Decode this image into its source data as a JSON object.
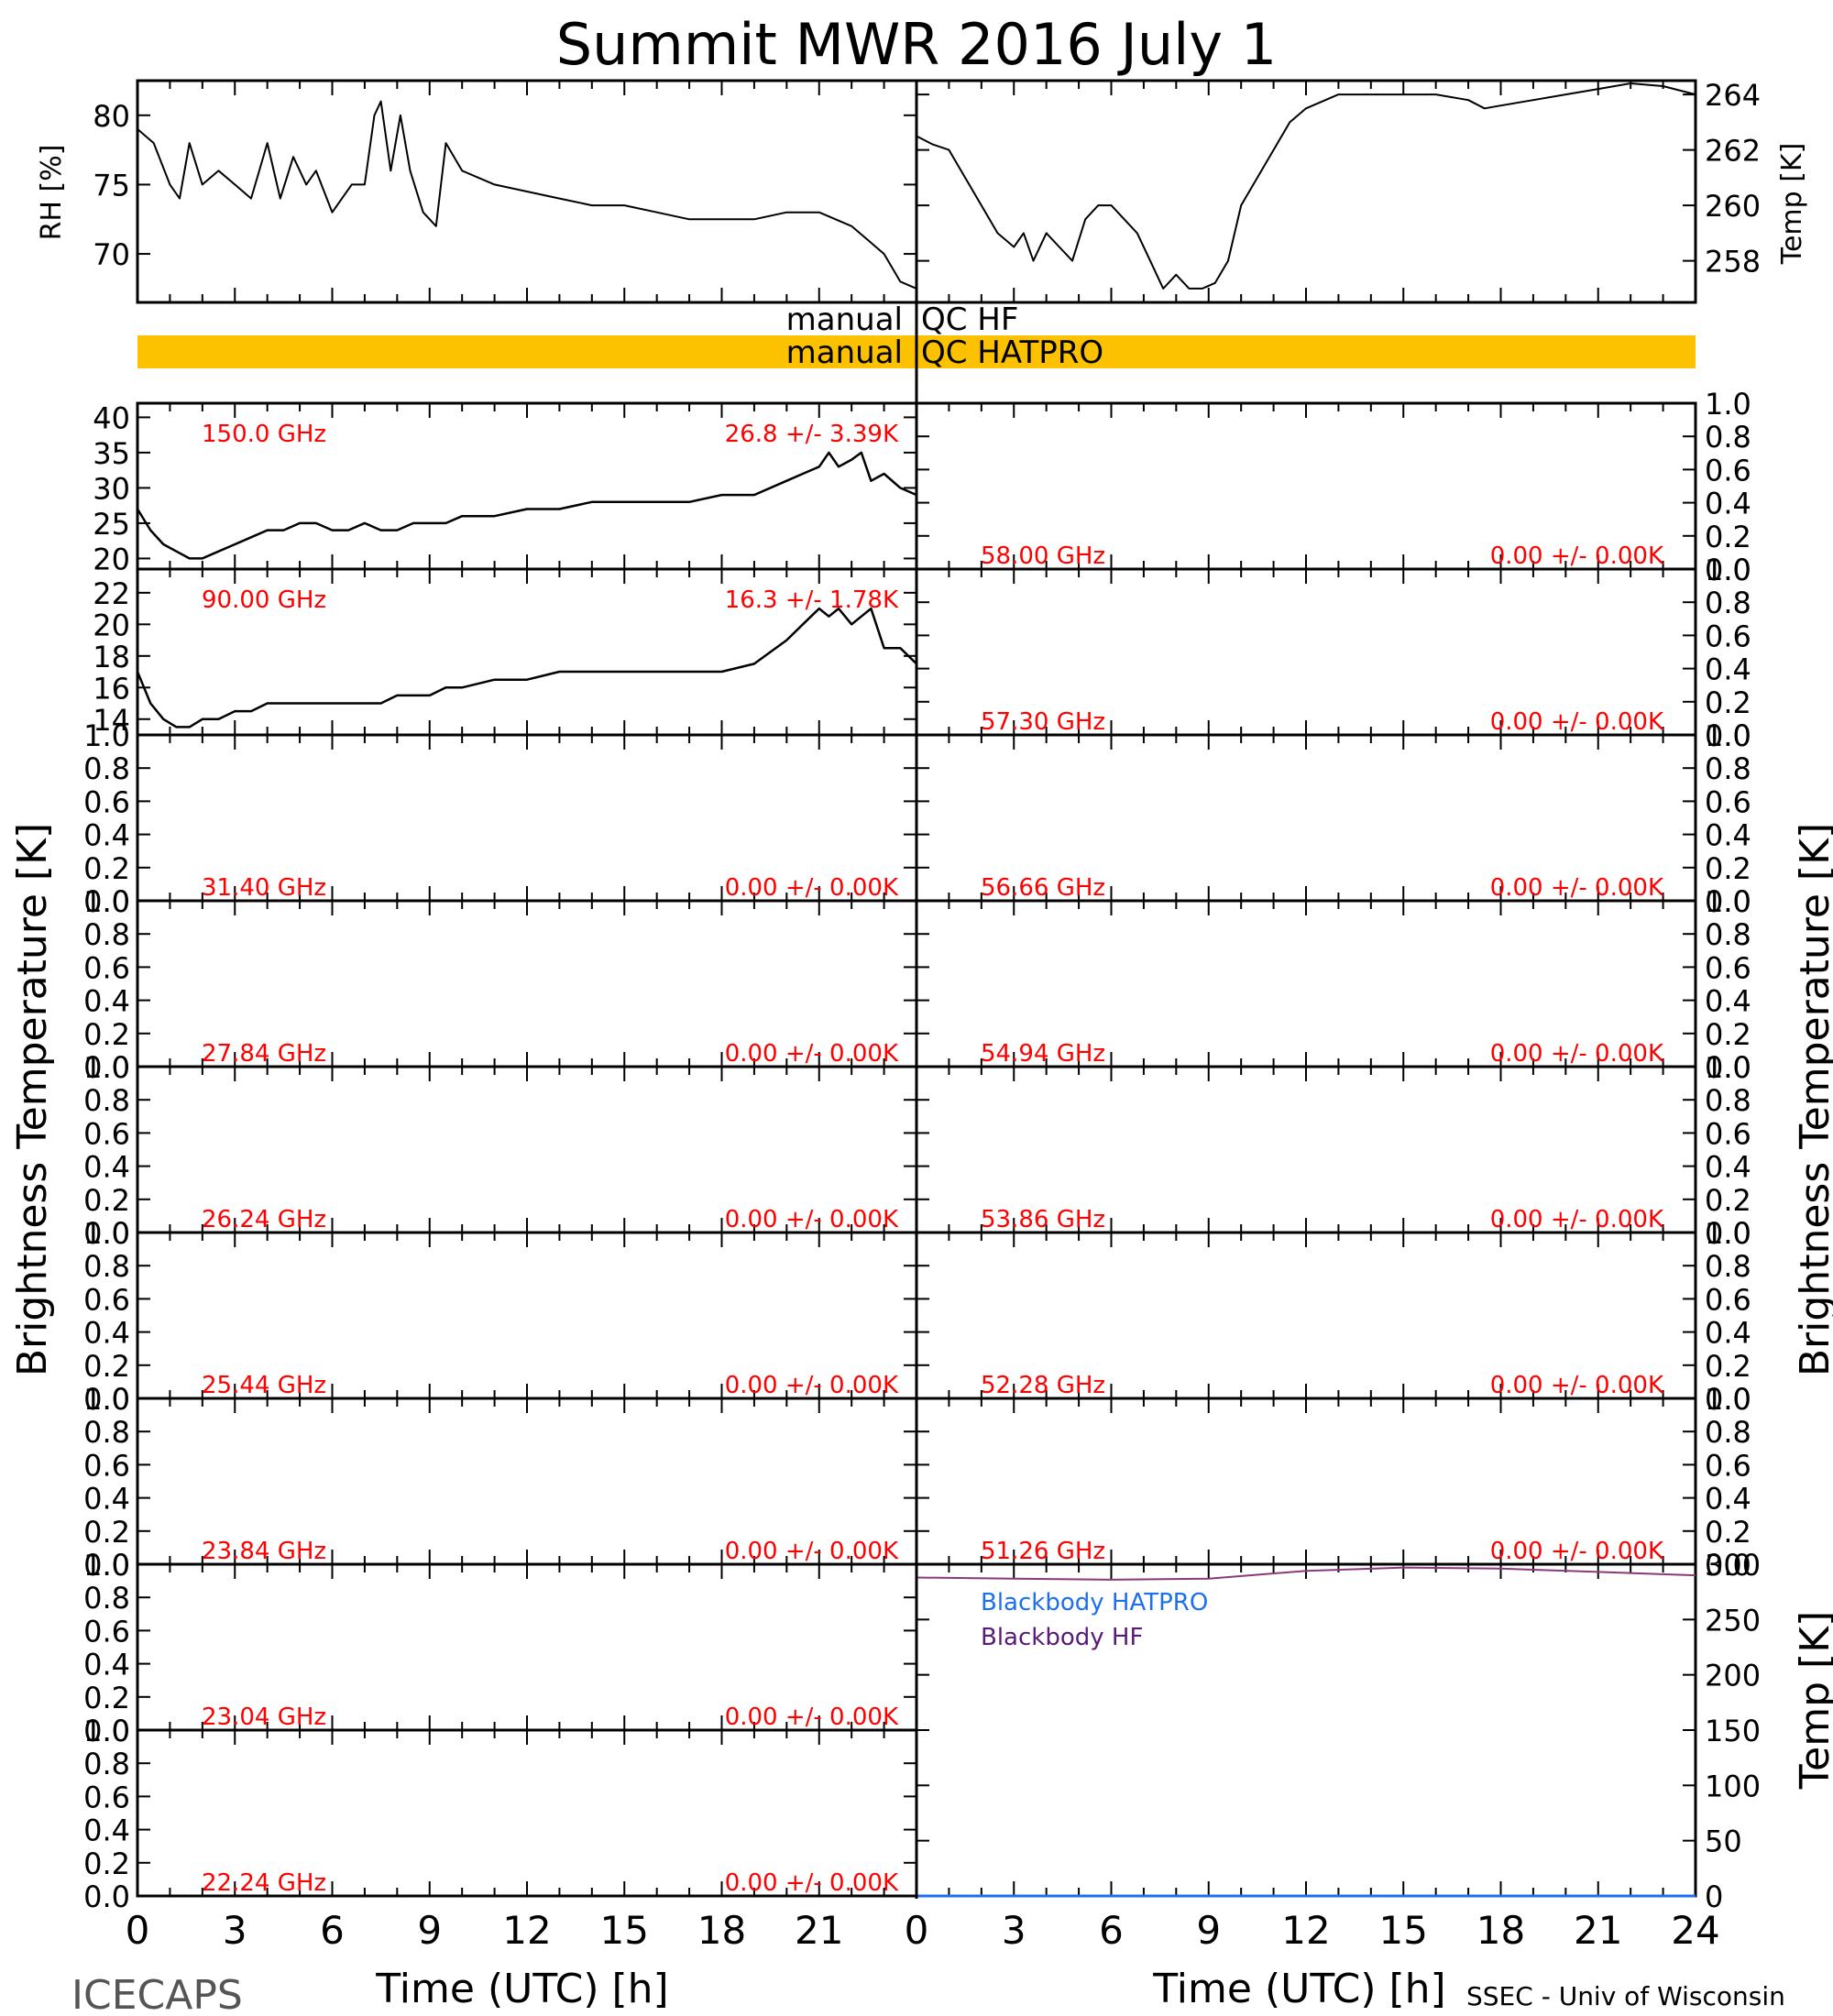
{
  "title": "Summit MWR 2016 July  1",
  "footer_left": "ICECAPS",
  "footer_right": "SSEC - Univ of Wisconsin",
  "colors": {
    "axis": "#000000",
    "trace": "#000000",
    "channel_label": "#ff0000",
    "qc_band": "#fcc200",
    "bb_hatpro": "#1e6ff0",
    "bb_hf": "#5a1a78",
    "bb_hf_line": "#8a3a7a"
  },
  "x_axis": {
    "label": "Time (UTC) [h]",
    "ticks_left": [
      "0",
      "3",
      "6",
      "9",
      "12",
      "15",
      "18",
      "21"
    ],
    "ticks_right": [
      "0",
      "3",
      "6",
      "9",
      "12",
      "15",
      "18",
      "21",
      "24"
    ],
    "range": [
      0,
      24
    ]
  },
  "y_axis_labels": {
    "rh": "RH [%]",
    "temp": "Temp [K]",
    "tb_left": "Brightness Temperature [K]",
    "tb_right": "Brightness Temperature [K]",
    "bb_temp": "Temp [K]"
  },
  "qc": {
    "hf_label_left": "manual",
    "hf_label_right": "QC HF",
    "hatpro_label_left": "manual",
    "hatpro_label_right": "QC HATPRO"
  },
  "chart_data": {
    "type": "line",
    "met": {
      "rh": {
        "ylim": [
          66.5,
          82.5
        ],
        "yticks": [
          "80",
          "75",
          "70"
        ],
        "x": [
          0,
          0.5,
          1,
          1.3,
          1.6,
          2,
          2.5,
          3,
          3.5,
          4,
          4.4,
          4.8,
          5.2,
          5.5,
          6,
          6.3,
          6.6,
          7,
          7.3,
          7.5,
          7.8,
          8.1,
          8.4,
          8.8,
          9.2,
          9.5,
          10,
          11,
          12,
          13,
          14,
          15,
          16,
          17,
          18,
          19,
          20,
          21,
          22,
          22.5,
          23,
          23.5,
          24
        ],
        "values": [
          79,
          78,
          75,
          74,
          78,
          75,
          76,
          75,
          74,
          78,
          74,
          77,
          75,
          76,
          73,
          74,
          75,
          75,
          80,
          81,
          76,
          80,
          76,
          73,
          72,
          78,
          76,
          75,
          74.5,
          74,
          73.5,
          73.5,
          73,
          72.5,
          72.5,
          72.5,
          73,
          73,
          72,
          71,
          70,
          68,
          67.5
        ]
      },
      "temp": {
        "ylim": [
          256.5,
          264.5
        ],
        "yticks": [
          "264",
          "262",
          "260",
          "258"
        ],
        "x": [
          0,
          0.5,
          1,
          1.5,
          2,
          2.5,
          3,
          3.3,
          3.6,
          4,
          4.4,
          4.8,
          5.2,
          5.6,
          6,
          6.4,
          6.8,
          7.2,
          7.6,
          8,
          8.4,
          8.8,
          9.2,
          9.6,
          10,
          10.5,
          11,
          11.5,
          12,
          13,
          14,
          15,
          16,
          17,
          17.5,
          18,
          19,
          20,
          21,
          22,
          23,
          24
        ],
        "values": [
          262.5,
          262.2,
          262,
          261,
          260,
          259,
          258.5,
          259,
          258,
          259,
          258.5,
          258,
          259.5,
          260,
          260,
          259.5,
          259,
          258,
          257,
          257.5,
          257,
          257,
          257.2,
          258,
          260,
          261,
          262,
          263,
          263.5,
          264,
          264,
          264,
          264,
          263.8,
          263.5,
          263.6,
          263.8,
          264,
          264.2,
          264.4,
          264.3,
          264
        ]
      }
    },
    "tb_left": [
      {
        "freq": "150.0 GHz",
        "stats": "26.8 +/-  3.39K",
        "ylim": [
          18.5,
          42
        ],
        "yticks": [
          "40",
          "35",
          "30",
          "25",
          "20"
        ],
        "x": [
          0,
          0.4,
          0.8,
          1.2,
          1.6,
          2,
          2.5,
          3,
          3.5,
          4,
          4.5,
          5,
          5.5,
          6,
          6.5,
          7,
          7.5,
          8,
          8.5,
          9,
          9.5,
          10,
          11,
          12,
          13,
          14,
          15,
          16,
          17,
          18,
          19,
          20,
          20.5,
          21,
          21.3,
          21.6,
          22,
          22.3,
          22.6,
          23,
          23.5,
          24
        ],
        "values": [
          27,
          24,
          22,
          21,
          20,
          20,
          21,
          22,
          23,
          24,
          24,
          25,
          25,
          24,
          24,
          25,
          24,
          24,
          25,
          25,
          25,
          26,
          26,
          27,
          27,
          28,
          28,
          28,
          28,
          29,
          29,
          31,
          32,
          33,
          35,
          33,
          34,
          35,
          31,
          32,
          30,
          29
        ]
      },
      {
        "freq": "90.00 GHz",
        "stats": "16.3 +/-  1.78K",
        "ylim": [
          13,
          23.5
        ],
        "yticks": [
          "22",
          "20",
          "18",
          "16",
          "14"
        ],
        "x": [
          0,
          0.4,
          0.8,
          1.2,
          1.6,
          2,
          2.5,
          3,
          3.5,
          4,
          4.5,
          5,
          5.5,
          6,
          6.5,
          7,
          7.5,
          8,
          8.5,
          9,
          9.5,
          10,
          11,
          12,
          13,
          14,
          15,
          16,
          17,
          18,
          19,
          20,
          20.5,
          21,
          21.3,
          21.6,
          22,
          22.3,
          22.6,
          23,
          23.5,
          24
        ],
        "values": [
          17,
          15,
          14,
          13.5,
          13.5,
          14,
          14,
          14.5,
          14.5,
          15,
          15,
          15,
          15,
          15,
          15,
          15,
          15,
          15.5,
          15.5,
          15.5,
          16,
          16,
          16.5,
          16.5,
          17,
          17,
          17,
          17,
          17,
          17,
          17.5,
          19,
          20,
          21,
          20.5,
          21,
          20,
          20.5,
          21,
          18.5,
          18.5,
          17.5
        ]
      },
      {
        "freq": "31.40 GHz",
        "stats": "0.00 +/-  0.00K",
        "ylim": [
          0,
          1
        ],
        "yticks": [
          "1.0",
          "0.8",
          "0.6",
          "0.4",
          "0.2",
          "0.0"
        ],
        "x": [],
        "values": []
      },
      {
        "freq": "27.84 GHz",
        "stats": "0.00 +/-  0.00K",
        "ylim": [
          0,
          1
        ],
        "yticks": [
          "1.0",
          "0.8",
          "0.6",
          "0.4",
          "0.2",
          "0.0"
        ],
        "x": [],
        "values": []
      },
      {
        "freq": "26.24 GHz",
        "stats": "0.00 +/-  0.00K",
        "ylim": [
          0,
          1
        ],
        "yticks": [
          "1.0",
          "0.8",
          "0.6",
          "0.4",
          "0.2",
          "0.0"
        ],
        "x": [],
        "values": []
      },
      {
        "freq": "25.44 GHz",
        "stats": "0.00 +/-  0.00K",
        "ylim": [
          0,
          1
        ],
        "yticks": [
          "1.0",
          "0.8",
          "0.6",
          "0.4",
          "0.2",
          "0.0"
        ],
        "x": [],
        "values": []
      },
      {
        "freq": "23.84 GHz",
        "stats": "0.00 +/-  0.00K",
        "ylim": [
          0,
          1
        ],
        "yticks": [
          "1.0",
          "0.8",
          "0.6",
          "0.4",
          "0.2",
          "0.0"
        ],
        "x": [],
        "values": []
      },
      {
        "freq": "23.04 GHz",
        "stats": "0.00 +/-  0.00K",
        "ylim": [
          0,
          1
        ],
        "yticks": [
          "1.0",
          "0.8",
          "0.6",
          "0.4",
          "0.2",
          "0.0"
        ],
        "x": [],
        "values": []
      },
      {
        "freq": "22.24 GHz",
        "stats": "0.00 +/-  0.00K",
        "ylim": [
          0,
          1
        ],
        "yticks": [
          "1.0",
          "0.8",
          "0.6",
          "0.4",
          "0.2",
          "0.0"
        ],
        "x": [],
        "values": []
      }
    ],
    "tb_right": [
      {
        "freq": "58.00 GHz",
        "stats": "0.00 +/-  0.00K",
        "ylim": [
          0,
          1
        ],
        "yticks": [
          "1.0",
          "0.8",
          "0.6",
          "0.4",
          "0.2",
          "0.0"
        ],
        "x": [],
        "values": []
      },
      {
        "freq": "57.30 GHz",
        "stats": "0.00 +/-  0.00K",
        "ylim": [
          0,
          1
        ],
        "yticks": [
          "1.0",
          "0.8",
          "0.6",
          "0.4",
          "0.2",
          "0.0"
        ],
        "x": [],
        "values": []
      },
      {
        "freq": "56.66 GHz",
        "stats": "0.00 +/-  0.00K",
        "ylim": [
          0,
          1
        ],
        "yticks": [
          "1.0",
          "0.8",
          "0.6",
          "0.4",
          "0.2",
          "0.0"
        ],
        "x": [],
        "values": []
      },
      {
        "freq": "54.94 GHz",
        "stats": "0.00 +/-  0.00K",
        "ylim": [
          0,
          1
        ],
        "yticks": [
          "1.0",
          "0.8",
          "0.6",
          "0.4",
          "0.2",
          "0.0"
        ],
        "x": [],
        "values": []
      },
      {
        "freq": "53.86 GHz",
        "stats": "0.00 +/-  0.00K",
        "ylim": [
          0,
          1
        ],
        "yticks": [
          "1.0",
          "0.8",
          "0.6",
          "0.4",
          "0.2",
          "0.0"
        ],
        "x": [],
        "values": []
      },
      {
        "freq": "52.28 GHz",
        "stats": "0.00 +/-  0.00K",
        "ylim": [
          0,
          1
        ],
        "yticks": [
          "1.0",
          "0.8",
          "0.6",
          "0.4",
          "0.2",
          "0.0"
        ],
        "x": [],
        "values": []
      },
      {
        "freq": "51.26 GHz",
        "stats": "0.00 +/-  0.00K",
        "ylim": [
          0,
          1
        ],
        "yticks": [
          "1.0",
          "0.8",
          "0.6",
          "0.4",
          "0.2",
          "0.0"
        ],
        "x": [],
        "values": []
      }
    ],
    "blackbody": {
      "ylim": [
        0,
        300
      ],
      "yticks": [
        "300",
        "250",
        "200",
        "150",
        "100",
        "50",
        "0"
      ],
      "legend": [
        "Blackbody HATPRO",
        "Blackbody HF"
      ],
      "hf": {
        "x": [
          0,
          3,
          6,
          9,
          12,
          15,
          18,
          21,
          24
        ],
        "values": [
          288,
          287,
          286,
          287,
          294,
          297,
          296,
          293,
          290
        ]
      },
      "hatpro": {
        "x": [
          0,
          24
        ],
        "values": [
          0,
          0
        ]
      }
    }
  }
}
